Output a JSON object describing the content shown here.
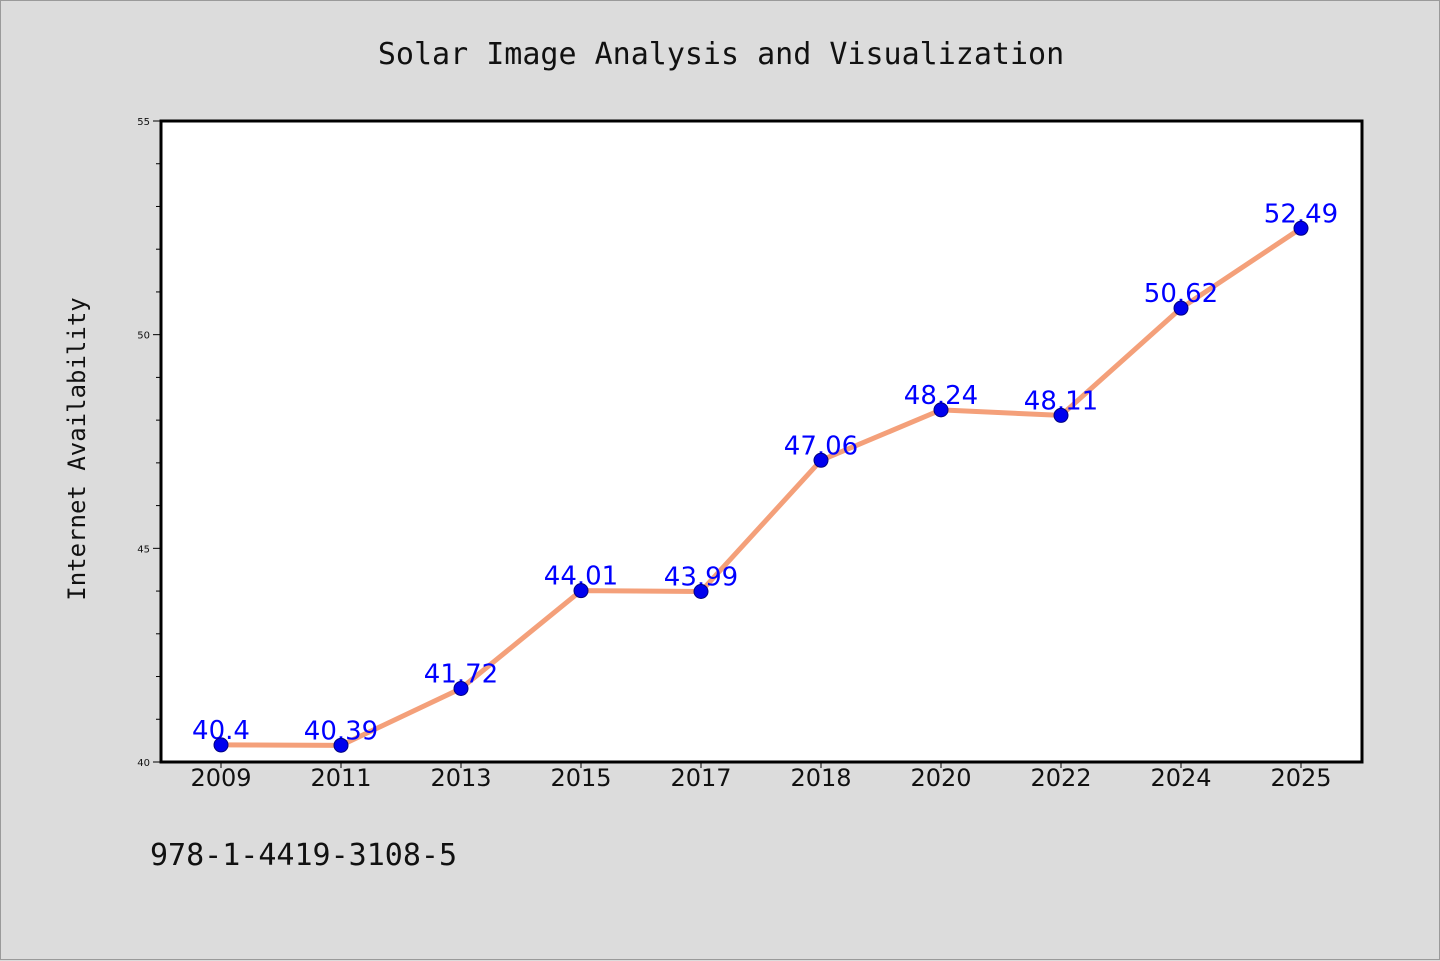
{
  "chart_data": {
    "type": "line",
    "title": "Solar Image Analysis and Visualization",
    "xlabel": "",
    "ylabel": "Internet Availability",
    "categories": [
      "2009",
      "2011",
      "2013",
      "2015",
      "2017",
      "2018",
      "2020",
      "2022",
      "2024",
      "2025"
    ],
    "values": [
      40.4,
      40.39,
      41.72,
      44.01,
      43.99,
      47.06,
      48.24,
      48.11,
      50.62,
      52.49
    ],
    "data_labels": [
      "40.4",
      "40.39",
      "41.72",
      "44.01",
      "43.99",
      "47.06",
      "48.24",
      "48.11",
      "50.62",
      "52.49"
    ],
    "ylim": [
      40,
      55
    ],
    "yticks": [
      40,
      45,
      50,
      55
    ],
    "grid": false,
    "legend": "none",
    "footnote": "978-1-4419-3108-5",
    "colors": {
      "line": "#f4a07a",
      "marker": "#0000ee",
      "data_label": "#0000ff",
      "plot_bg": "#ffffff",
      "page_bg": "#dcdcdc"
    }
  }
}
